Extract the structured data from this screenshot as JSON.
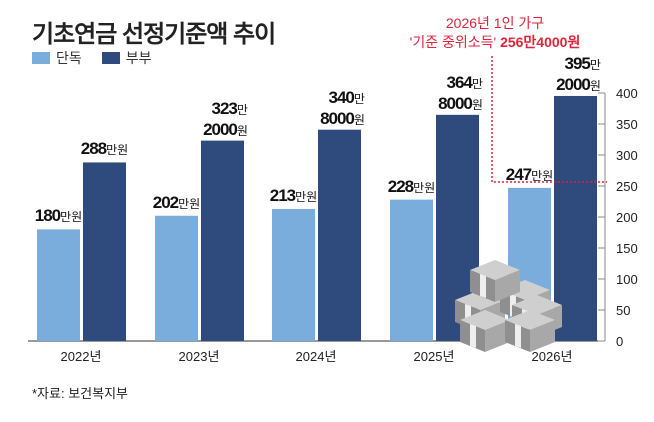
{
  "chart_data": {
    "type": "bar",
    "title": "기초연금 선정기준액 추이",
    "categories": [
      "2022년",
      "2023년",
      "2024년",
      "2025년",
      "2026년"
    ],
    "series": [
      {
        "name": "단독",
        "color": "#7aaddb",
        "values": [
          180,
          202,
          213,
          228,
          247
        ],
        "labels": [
          [
            "180",
            "만원"
          ],
          [
            "202",
            "만원"
          ],
          [
            "213",
            "만원"
          ],
          [
            "228",
            "만원"
          ],
          [
            "247",
            "만원"
          ]
        ]
      },
      {
        "name": "부부",
        "color": "#2f4a7c",
        "values": [
          288,
          323.2,
          340.8,
          364.8,
          395.2
        ],
        "labels": [
          [
            "288",
            "만원"
          ],
          [
            "323",
            "만",
            "2000",
            "원"
          ],
          [
            "340",
            "만",
            "8000",
            "원"
          ],
          [
            "364",
            "만",
            "8000",
            "원"
          ],
          [
            "395",
            "만",
            "2000",
            "원"
          ]
        ]
      }
    ],
    "ylim": [
      0,
      400
    ],
    "yticks": [
      0,
      50,
      100,
      150,
      200,
      250,
      300,
      350,
      400
    ],
    "reference": {
      "value": 256.4,
      "color": "#e0223a",
      "line1": "2026년 1인 가구",
      "line2_pre": "'기준 중위소득'",
      "line2_num": "256만4000원"
    }
  },
  "source": "*자료: 보건복지부"
}
